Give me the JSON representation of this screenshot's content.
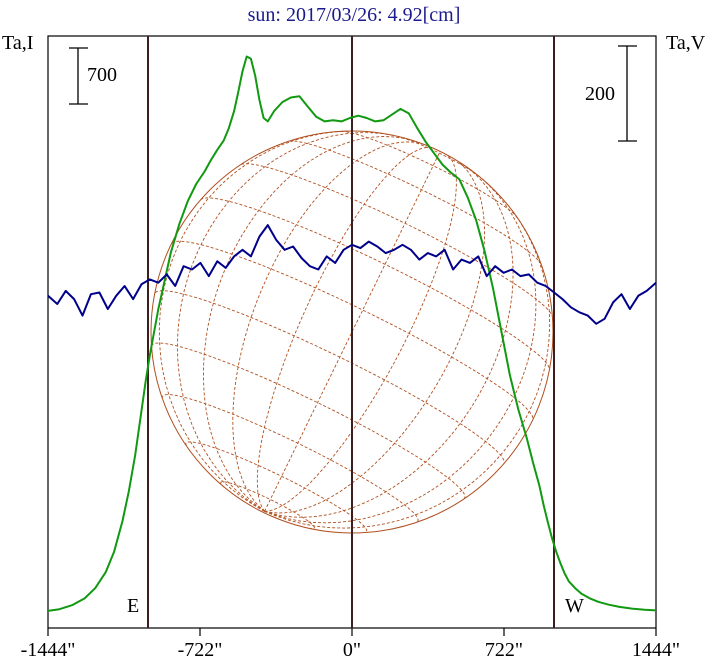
{
  "chart_data": {
    "type": "line",
    "title": "sun: 2017/03/26: 4.92[cm]",
    "left_axis_label": "Ta,I",
    "right_axis_label": "Ta,V",
    "left_scale_bar_value": "700",
    "right_scale_bar_value": "200",
    "limb_labels": {
      "east": "E",
      "west": "W"
    },
    "x_tick_labels": [
      "-1444\"",
      "-722\"",
      "0\"",
      "722\"",
      "1444\""
    ],
    "x_ticks": [
      -1444,
      -722,
      0,
      722,
      1444
    ],
    "xlim": [
      -1444,
      1444
    ],
    "x_unit": "arcsec",
    "vertical_markers": [
      -963,
      0,
      963
    ],
    "grid": false,
    "colors": {
      "title": "#1a1a8c",
      "stokes_i": "#119911",
      "stokes_v": "#00008b",
      "markers": "#3c1e1e",
      "disk": "#b05020",
      "frame": "#000000"
    },
    "series": [
      {
        "name": "Ta,I",
        "axis": "left",
        "x": [
          -1444,
          -1390,
          -1330,
          -1270,
          -1220,
          -1170,
          -1130,
          -1090,
          -1060,
          -1030,
          -1000,
          -980,
          -960,
          -940,
          -920,
          -890,
          -860,
          -820,
          -780,
          -740,
          -700,
          -670,
          -640,
          -610,
          -585,
          -560,
          -540,
          -520,
          -500,
          -480,
          -460,
          -440,
          -420,
          -400,
          -370,
          -330,
          -290,
          -250,
          -210,
          -170,
          -130,
          -90,
          -50,
          -10,
          30,
          70,
          110,
          150,
          190,
          230,
          270,
          310,
          350,
          390,
          430,
          470,
          510,
          550,
          590,
          630,
          670,
          710,
          750,
          790,
          830,
          860,
          890,
          910,
          930,
          950,
          970,
          990,
          1010,
          1030,
          1060,
          1090,
          1130,
          1170,
          1220,
          1270,
          1330,
          1390,
          1444
        ],
        "values": [
          0,
          15,
          50,
          110,
          200,
          340,
          520,
          790,
          1050,
          1370,
          1760,
          2020,
          2250,
          2450,
          2650,
          2900,
          3150,
          3400,
          3600,
          3750,
          3860,
          3960,
          4050,
          4130,
          4240,
          4390,
          4560,
          4740,
          4870,
          4850,
          4700,
          4490,
          4330,
          4300,
          4390,
          4470,
          4510,
          4520,
          4430,
          4340,
          4300,
          4310,
          4300,
          4330,
          4350,
          4330,
          4300,
          4310,
          4360,
          4410,
          4370,
          4240,
          4120,
          4020,
          3920,
          3850,
          3790,
          3630,
          3430,
          3160,
          2830,
          2450,
          2070,
          1770,
          1520,
          1300,
          1100,
          930,
          780,
          640,
          520,
          420,
          330,
          260,
          200,
          150,
          110,
          80,
          55,
          35,
          20,
          10,
          5
        ],
        "values_note": "relative units; the plot prints only a 700 scale bar",
        "ylim": [
          -150,
          5050
        ]
      },
      {
        "name": "Ta,V",
        "axis": "right",
        "x": [
          -1444,
          -1400,
          -1360,
          -1320,
          -1280,
          -1240,
          -1200,
          -1160,
          -1120,
          -1080,
          -1040,
          -1000,
          -960,
          -920,
          -880,
          -840,
          -800,
          -760,
          -720,
          -680,
          -640,
          -600,
          -560,
          -520,
          -480,
          -440,
          -400,
          -360,
          -320,
          -280,
          -240,
          -200,
          -160,
          -120,
          -80,
          -40,
          0,
          40,
          80,
          120,
          160,
          200,
          240,
          280,
          320,
          360,
          400,
          440,
          480,
          520,
          560,
          600,
          640,
          680,
          720,
          760,
          800,
          840,
          880,
          920,
          960,
          1000,
          1040,
          1080,
          1120,
          1160,
          1200,
          1240,
          1280,
          1320,
          1360,
          1400,
          1444
        ],
        "values": [
          2,
          -3,
          5,
          0,
          -10,
          3,
          4,
          -6,
          2,
          8,
          0,
          9,
          12,
          10,
          15,
          8,
          20,
          18,
          22,
          14,
          23,
          19,
          26,
          30,
          26,
          38,
          45,
          36,
          30,
          32,
          25,
          20,
          18,
          26,
          22,
          30,
          33,
          31,
          35,
          32,
          28,
          30,
          33,
          30,
          24,
          28,
          26,
          30,
          18,
          24,
          22,
          26,
          14,
          20,
          16,
          18,
          14,
          15,
          10,
          8,
          4,
          0,
          -5,
          -8,
          -10,
          -15,
          -12,
          -2,
          3,
          -6,
          2,
          5,
          10
        ],
        "values_note": "relative units; the plot prints only a 200 scale bar",
        "ylim": [
          -200,
          160
        ]
      }
    ]
  }
}
